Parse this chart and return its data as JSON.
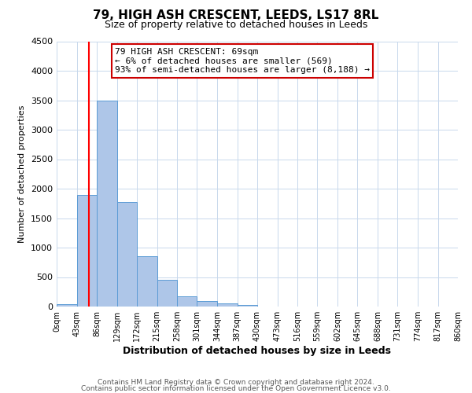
{
  "title": "79, HIGH ASH CRESCENT, LEEDS, LS17 8RL",
  "subtitle": "Size of property relative to detached houses in Leeds",
  "xlabel": "Distribution of detached houses by size in Leeds",
  "ylabel": "Number of detached properties",
  "bar_left_edges": [
    0,
    43,
    86,
    129,
    172,
    215,
    258,
    301,
    344,
    387,
    430,
    473,
    516,
    559,
    602,
    645,
    688,
    731,
    774,
    817
  ],
  "bar_heights": [
    40,
    1900,
    3500,
    1780,
    850,
    460,
    180,
    90,
    55,
    25,
    0,
    0,
    0,
    0,
    0,
    0,
    0,
    0,
    0,
    0
  ],
  "bin_width": 43,
  "bar_color": "#aec6e8",
  "bar_edge_color": "#5b9bd5",
  "x_tick_labels": [
    "0sqm",
    "43sqm",
    "86sqm",
    "129sqm",
    "172sqm",
    "215sqm",
    "258sqm",
    "301sqm",
    "344sqm",
    "387sqm",
    "430sqm",
    "473sqm",
    "516sqm",
    "559sqm",
    "602sqm",
    "645sqm",
    "688sqm",
    "731sqm",
    "774sqm",
    "817sqm",
    "860sqm"
  ],
  "ylim": [
    0,
    4500
  ],
  "yticks": [
    0,
    500,
    1000,
    1500,
    2000,
    2500,
    3000,
    3500,
    4000,
    4500
  ],
  "xlim": [
    0,
    860
  ],
  "red_line_x": 69,
  "annotation_title": "79 HIGH ASH CRESCENT: 69sqm",
  "annotation_line1": "← 6% of detached houses are smaller (569)",
  "annotation_line2": "93% of semi-detached houses are larger (8,188) →",
  "annotation_box_color": "#ffffff",
  "annotation_box_edge": "#cc0000",
  "footer1": "Contains HM Land Registry data © Crown copyright and database right 2024.",
  "footer2": "Contains public sector information licensed under the Open Government Licence v3.0.",
  "background_color": "#ffffff",
  "grid_color": "#c8d8ec",
  "title_fontsize": 11,
  "subtitle_fontsize": 9,
  "xlabel_fontsize": 9,
  "ylabel_fontsize": 8,
  "ytick_fontsize": 8,
  "xtick_fontsize": 7,
  "ann_fontsize": 8,
  "footer_fontsize": 6.5
}
